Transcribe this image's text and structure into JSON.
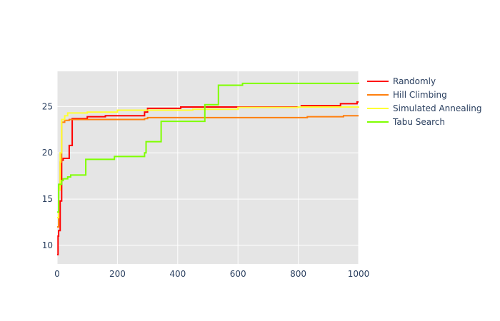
{
  "chart_data": {
    "type": "line",
    "title": "",
    "xlabel": "",
    "ylabel": "",
    "xlim": [
      0,
      1000
    ],
    "ylim": [
      8,
      28.8
    ],
    "xticks": [
      0,
      200,
      400,
      600,
      800,
      1000
    ],
    "yticks": [
      10,
      15,
      20,
      25
    ],
    "grid": true,
    "legend_position": "top-right outside",
    "series": [
      {
        "name": "Randomly",
        "color": "#ff0000",
        "step": true,
        "points": [
          [
            0,
            9
          ],
          [
            3,
            11
          ],
          [
            5,
            11.6
          ],
          [
            10,
            14.8
          ],
          [
            15,
            19.2
          ],
          [
            20,
            19.4
          ],
          [
            30,
            19.4
          ],
          [
            40,
            20.8
          ],
          [
            50,
            23.7
          ],
          [
            100,
            23.9
          ],
          [
            160,
            24.0
          ],
          [
            290,
            24.4
          ],
          [
            300,
            24.8
          ],
          [
            410,
            24.95
          ],
          [
            810,
            25.1
          ],
          [
            940,
            25.3
          ],
          [
            995,
            25.5
          ],
          [
            1000,
            25.5
          ]
        ]
      },
      {
        "name": "Hill Climbing",
        "color": "#ff7f0e",
        "step": true,
        "points": [
          [
            0,
            12
          ],
          [
            5,
            16
          ],
          [
            10,
            19
          ],
          [
            15,
            23.3
          ],
          [
            25,
            23.5
          ],
          [
            40,
            23.6
          ],
          [
            290,
            23.7
          ],
          [
            300,
            23.8
          ],
          [
            830,
            23.9
          ],
          [
            950,
            24.0
          ],
          [
            1000,
            24.0
          ]
        ]
      },
      {
        "name": "Simulated Annealing",
        "color": "#ffff33",
        "step": true,
        "points": [
          [
            0,
            13
          ],
          [
            5,
            16
          ],
          [
            10,
            20
          ],
          [
            15,
            23.6
          ],
          [
            25,
            24.0
          ],
          [
            35,
            24.3
          ],
          [
            100,
            24.4
          ],
          [
            200,
            24.6
          ],
          [
            450,
            24.7
          ],
          [
            600,
            24.9
          ],
          [
            800,
            24.95
          ],
          [
            1000,
            25.0
          ]
        ]
      },
      {
        "name": "Tabu Search",
        "color": "#7fff00",
        "step": true,
        "points": [
          [
            0,
            13.6
          ],
          [
            5,
            16.6
          ],
          [
            15,
            17.0
          ],
          [
            20,
            17.2
          ],
          [
            35,
            17.4
          ],
          [
            45,
            17.6
          ],
          [
            95,
            19.3
          ],
          [
            190,
            19.6
          ],
          [
            290,
            20.0
          ],
          [
            295,
            21.2
          ],
          [
            345,
            23.4
          ],
          [
            490,
            25.2
          ],
          [
            535,
            27.3
          ],
          [
            615,
            27.5
          ],
          [
            1000,
            27.6
          ]
        ]
      }
    ]
  }
}
